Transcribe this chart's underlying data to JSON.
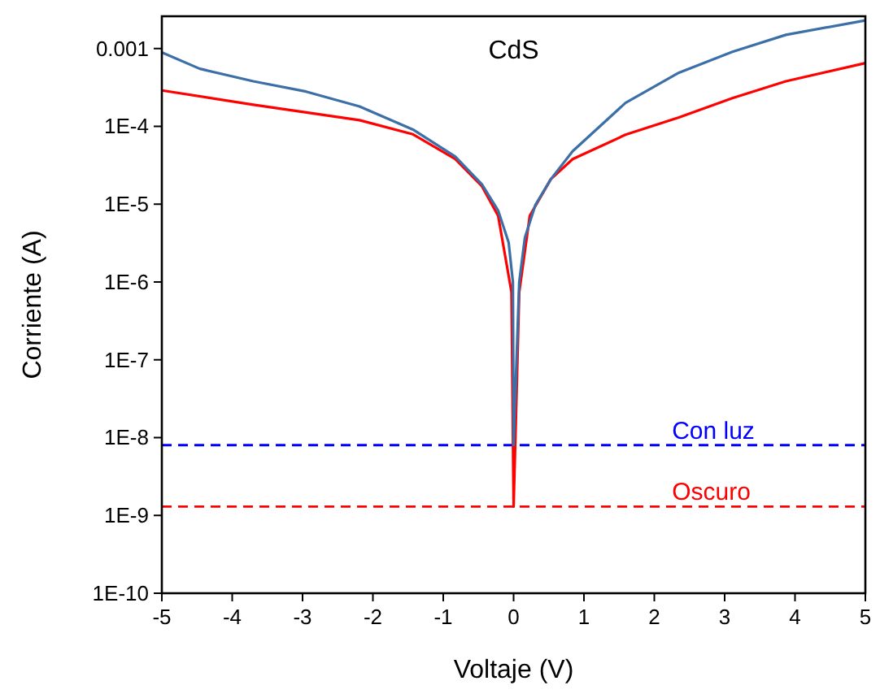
{
  "chart_data": {
    "type": "line",
    "title": "CdS",
    "xlabel": "Voltaje (V)",
    "ylabel": "Corriente (A)",
    "log": "y",
    "grid": false,
    "marker": "none",
    "line_style": "solid",
    "xlim": [
      -5,
      5
    ],
    "xticks": [
      -5,
      -4,
      -3,
      -2,
      -1,
      0,
      1,
      2,
      3,
      4,
      5
    ],
    "ylim": [
      1e-10,
      0.0026
    ],
    "yticks": [
      {
        "value": 1e-10,
        "label": "1E-10"
      },
      {
        "value": 1e-09,
        "label": "1E-9"
      },
      {
        "value": 1e-08,
        "label": "1E-8"
      },
      {
        "value": 1e-07,
        "label": "1E-7"
      },
      {
        "value": 1e-06,
        "label": "1E-6"
      },
      {
        "value": 1e-05,
        "label": "1E-5"
      },
      {
        "value": 0.0001,
        "label": "1E-4"
      },
      0.001
    ],
    "series": [
      {
        "color": "#ff0000",
        "x": [
          -5,
          -3.7,
          -2.19,
          -1.43,
          -0.83,
          -0.45,
          -0.22,
          -0.03,
          0,
          0.08,
          0.23,
          0.53,
          0.84,
          1.59,
          2.35,
          3.11,
          3.87,
          5
        ],
        "values": [
          0.00029,
          0.00019,
          0.00012,
          7.9e-05,
          3.8e-05,
          1.7e-05,
          7.1e-06,
          7.4e-07,
          1.3e-09,
          7.4e-07,
          7.1e-06,
          2.1e-05,
          3.8e-05,
          7.8e-05,
          0.00013,
          0.00023,
          0.00038,
          0.00065
        ]
      },
      {
        "color": "#3c6fa8",
        "x": [
          -5,
          -4.46,
          -3.7,
          -2.95,
          -2.19,
          -1.43,
          -0.83,
          -0.45,
          -0.22,
          -0.07,
          -0.01,
          0,
          0.08,
          0.16,
          0.31,
          0.53,
          0.84,
          1.59,
          2.35,
          3.11,
          3.87,
          5
        ],
        "values": [
          0.00089,
          0.00055,
          0.00038,
          0.00028,
          0.00018,
          9.1e-05,
          4.1e-05,
          1.8e-05,
          8.3e-06,
          3.2e-06,
          1e-06,
          8e-09,
          1e-06,
          3.7e-06,
          9.8e-06,
          2.1e-05,
          4.8e-05,
          0.0002,
          0.00049,
          0.00091,
          0.0015,
          0.0023
        ]
      }
    ],
    "ref_lines": [
      {
        "axis": "y",
        "value": 8e-09,
        "label": "Con luz",
        "color": "#0000ff",
        "line_style": "dashed"
      },
      {
        "axis": "y",
        "value": 1.3e-09,
        "label": "Oscuro",
        "color": "#ff0000",
        "line_style": "dashed"
      }
    ]
  }
}
